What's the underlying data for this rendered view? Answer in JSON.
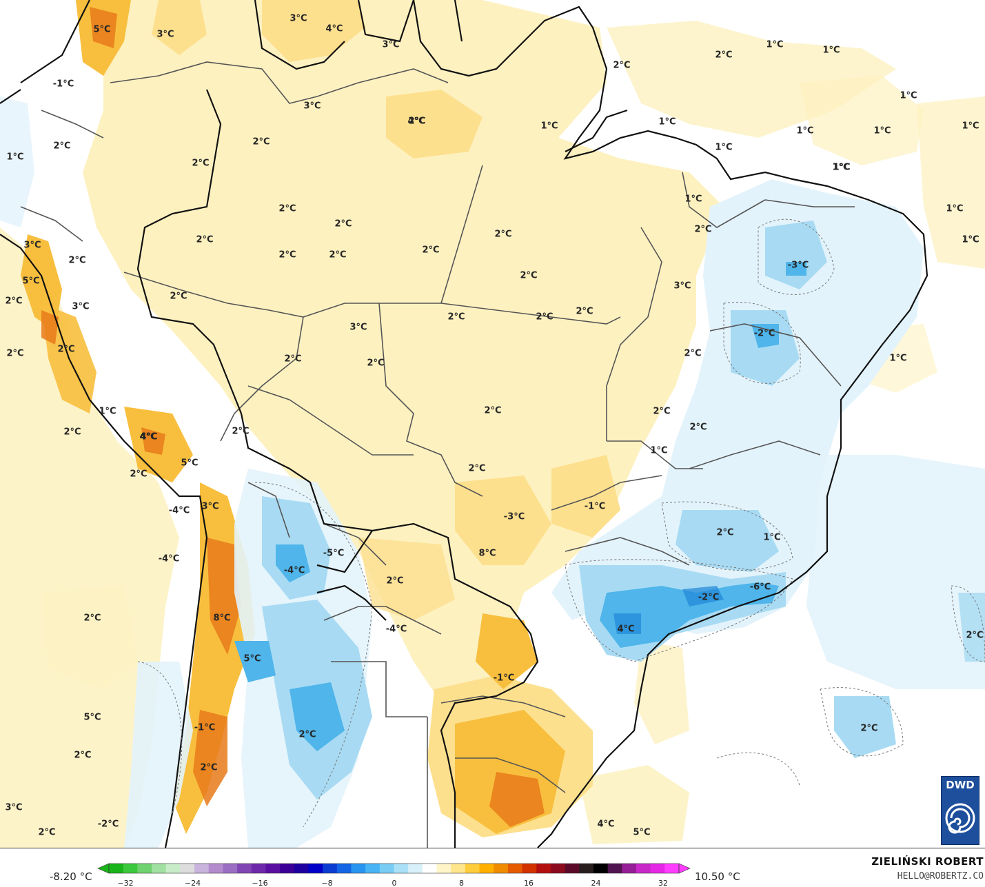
{
  "map": {
    "min_value": "-8.20 °C",
    "max_value": "10.50 °C",
    "temperature_labels": [
      "5°C",
      "3°C",
      "3°C",
      "4°C",
      "3°C",
      "1°C",
      "1°C",
      "2°C",
      "1°C",
      "-1°C",
      "3°C",
      "2°C",
      "2°C",
      "1°C",
      "1°C",
      "1°C",
      "1°C",
      "1°C",
      "1°C",
      "1°C",
      "1°C",
      "1°C",
      "1°C",
      "1°C",
      "4°C",
      "1°C",
      "2°C",
      "2°C",
      "2°C",
      "2°C",
      "2°C",
      "2°C",
      "2°C",
      "2°C",
      "2°C",
      "2°C",
      "2°C",
      "-3°C",
      "2°C",
      "3°C",
      "1°C",
      "3°C",
      "2°C",
      "5°C",
      "2°C",
      "2°C",
      "3°C",
      "2°C",
      "2°C",
      "2°C",
      "3°C",
      "-2°C",
      "1°C",
      "2°C",
      "2°C",
      "1°C",
      "2°C",
      "2°C",
      "2°C",
      "1°C",
      "4°C",
      "2°C",
      "5°C",
      "2°C",
      "2°C",
      "8°C",
      "2°C",
      "4°C",
      "2°C",
      "2°C",
      "2°C",
      "-4°C",
      "3°C",
      "-3°C",
      "-1°C",
      "2°C",
      "1°C",
      "-4°C",
      "-5°C",
      "-4°C",
      "8°C",
      "2°C",
      "-2°C",
      "-6°C",
      "4°C",
      "2°C",
      "2°C",
      "-4°C",
      "-1°C",
      "5°C",
      "2°C",
      "-1°C",
      "5°C",
      "2°C",
      "2°C",
      "2°C",
      "3°C",
      "2°C",
      "-2°C",
      "4°C",
      "5°C"
    ]
  },
  "legend": {
    "ticks": [
      "-32",
      "-24",
      "-16",
      "-8",
      "0",
      "8",
      "16",
      "24",
      "32"
    ],
    "colors": [
      "#19b419",
      "#3cc83c",
      "#6ed26e",
      "#a0e0a0",
      "#c8ecc8",
      "#dddddd",
      "#c8b4dc",
      "#b48ccd",
      "#9b6ec3",
      "#8246b4",
      "#6e28aa",
      "#5a0fa0",
      "#3c0096",
      "#1e00a0",
      "#0000c8",
      "#0a3cd2",
      "#1464e6",
      "#2896f0",
      "#46b4f5",
      "#78cdf5",
      "#aae1f8",
      "#d7f0fa",
      "#ffffff",
      "#fff5c8",
      "#ffe68c",
      "#ffcd3c",
      "#ffaf00",
      "#f08c00",
      "#e65a00",
      "#d23200",
      "#b40f0f",
      "#8c0a1e",
      "#5a0a28",
      "#281e1e",
      "#000000",
      "#501450",
      "#961e96",
      "#c828c8",
      "#e628e6",
      "#ff3cff"
    ]
  },
  "credits": {
    "author": "ZIELIŃSKI ROBERT",
    "contact": "HELLO@ROBERTZ.CO",
    "logo_text": "DWD"
  },
  "colors": {
    "warm_light": "#fdf1c0",
    "warm_mid": "#fde08e",
    "warm_strong": "#f8bf3e",
    "hot": "#e87a1a",
    "cool_light": "#e3f3fb",
    "cool_mid": "#a8dbf3",
    "cool_strong": "#4fb5ea",
    "cold": "#1f87d8",
    "border": "#555555",
    "coast": "#111111"
  }
}
